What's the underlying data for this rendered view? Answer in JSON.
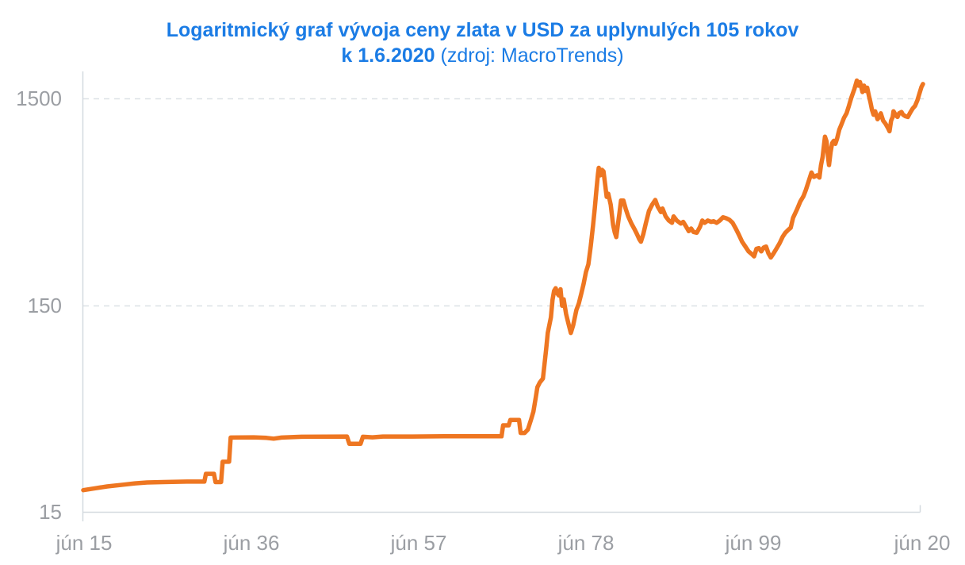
{
  "title": {
    "line1": "Logaritmický graf vývoja ceny zlata v USD za uplynulých 105 rokov",
    "line2_bold": "k 1.6.2020",
    "line2_normal": "(zdroj: MacroTrends)"
  },
  "colors": {
    "title_blue": "#1B7CE5",
    "line_orange": "#EE7621",
    "tick_gray": "#9B9EA3",
    "grid_dashed": "#DCE1E6",
    "axis_solid": "#D4DADF"
  },
  "chart_data": {
    "type": "line",
    "title": "Logaritmický graf vývoja ceny zlata v USD za uplynulých 105 rokov k 1.6.2020 (zdroj: MacroTrends)",
    "scale_y": "log",
    "grid": "horizontal-dashed",
    "legend": "none",
    "x_axis": {
      "tick_labels": [
        "jún 15",
        "jún 36",
        "jún 57",
        "jún 78",
        "jún 99",
        "jún 20"
      ],
      "tick_years": [
        1915,
        1936,
        1957,
        1978,
        1999,
        2020
      ],
      "range_years": [
        1915,
        2020.5
      ]
    },
    "y_axis": {
      "tick_labels": [
        "1500",
        "150",
        "15"
      ],
      "tick_values": [
        1500,
        150,
        15
      ],
      "range": [
        15,
        2400
      ],
      "dashed_gridlines_at": [
        150,
        1500
      ]
    },
    "series": [
      {
        "name": "gold-price-usd",
        "points_format": [
          "year",
          "price_usd"
        ],
        "points": [
          [
            1915.0,
            19.1
          ],
          [
            1916.5,
            19.5
          ],
          [
            1918.0,
            19.9
          ],
          [
            1920.0,
            20.3
          ],
          [
            1921.5,
            20.6
          ],
          [
            1923.0,
            20.8
          ],
          [
            1925.0,
            20.9
          ],
          [
            1928.0,
            21.0
          ],
          [
            1930.2,
            21.0
          ],
          [
            1930.4,
            22.9
          ],
          [
            1931.4,
            22.9
          ],
          [
            1931.6,
            20.9
          ],
          [
            1932.3,
            20.9
          ],
          [
            1932.5,
            26.2
          ],
          [
            1933.3,
            26.2
          ],
          [
            1933.5,
            34.3
          ],
          [
            1936.4,
            34.4
          ],
          [
            1938.0,
            34.2
          ],
          [
            1938.9,
            33.9
          ],
          [
            1939.9,
            34.3
          ],
          [
            1942.4,
            34.6
          ],
          [
            1948.1,
            34.7
          ],
          [
            1948.4,
            32.0
          ],
          [
            1949.8,
            32.0
          ],
          [
            1950.1,
            34.6
          ],
          [
            1951.3,
            34.4
          ],
          [
            1952.6,
            34.7
          ],
          [
            1956.3,
            34.7
          ],
          [
            1960.3,
            34.8
          ],
          [
            1964.3,
            34.8
          ],
          [
            1967.5,
            34.8
          ],
          [
            1967.7,
            39.3
          ],
          [
            1968.4,
            39.3
          ],
          [
            1968.6,
            41.7
          ],
          [
            1969.7,
            41.7
          ],
          [
            1969.9,
            36.1
          ],
          [
            1970.4,
            36.1
          ],
          [
            1970.8,
            37.5
          ],
          [
            1971.2,
            41.9
          ],
          [
            1971.5,
            45.8
          ],
          [
            1971.8,
            53.7
          ],
          [
            1972.0,
            60.1
          ],
          [
            1972.3,
            63.3
          ],
          [
            1972.7,
            66.2
          ],
          [
            1972.9,
            78.3
          ],
          [
            1973.1,
            92
          ],
          [
            1973.3,
            110
          ],
          [
            1973.5,
            120
          ],
          [
            1973.7,
            131
          ],
          [
            1973.9,
            159
          ],
          [
            1974.1,
            176
          ],
          [
            1974.3,
            181
          ],
          [
            1974.5,
            171
          ],
          [
            1974.7,
            167
          ],
          [
            1974.9,
            179
          ],
          [
            1975.1,
            149
          ],
          [
            1975.3,
            160
          ],
          [
            1975.6,
            136
          ],
          [
            1975.9,
            122
          ],
          [
            1976.2,
            110
          ],
          [
            1976.5,
            120
          ],
          [
            1976.9,
            142
          ],
          [
            1977.2,
            153
          ],
          [
            1977.5,
            170
          ],
          [
            1977.8,
            190
          ],
          [
            1978.1,
            217
          ],
          [
            1978.4,
            236
          ],
          [
            1978.7,
            289
          ],
          [
            1979.0,
            367
          ],
          [
            1979.2,
            441
          ],
          [
            1979.4,
            537
          ],
          [
            1979.6,
            645
          ],
          [
            1979.7,
            692
          ],
          [
            1979.9,
            637
          ],
          [
            1980.1,
            677
          ],
          [
            1980.3,
            665
          ],
          [
            1980.5,
            578
          ],
          [
            1980.7,
            501
          ],
          [
            1980.9,
            519
          ],
          [
            1981.2,
            459
          ],
          [
            1981.5,
            367
          ],
          [
            1981.7,
            338
          ],
          [
            1981.9,
            320
          ],
          [
            1982.1,
            367
          ],
          [
            1982.3,
            418
          ],
          [
            1982.5,
            481
          ],
          [
            1982.8,
            481
          ],
          [
            1983.1,
            437
          ],
          [
            1983.4,
            403
          ],
          [
            1983.8,
            372
          ],
          [
            1984.2,
            349
          ],
          [
            1984.5,
            331
          ],
          [
            1984.8,
            312
          ],
          [
            1985.0,
            304
          ],
          [
            1985.3,
            331
          ],
          [
            1985.6,
            372
          ],
          [
            1986.0,
            428
          ],
          [
            1986.4,
            459
          ],
          [
            1986.8,
            484
          ],
          [
            1987.1,
            450
          ],
          [
            1987.5,
            423
          ],
          [
            1987.7,
            440
          ],
          [
            1988.1,
            403
          ],
          [
            1988.5,
            385
          ],
          [
            1988.9,
            375
          ],
          [
            1989.1,
            403
          ],
          [
            1989.5,
            385
          ],
          [
            1990.0,
            372
          ],
          [
            1990.3,
            379
          ],
          [
            1990.7,
            358
          ],
          [
            1991.0,
            342
          ],
          [
            1991.3,
            352
          ],
          [
            1991.6,
            339
          ],
          [
            1992.0,
            336
          ],
          [
            1992.4,
            358
          ],
          [
            1992.7,
            385
          ],
          [
            1993.0,
            375
          ],
          [
            1993.4,
            385
          ],
          [
            1993.8,
            379
          ],
          [
            1994.1,
            382
          ],
          [
            1994.5,
            375
          ],
          [
            1994.9,
            385
          ],
          [
            1995.3,
            399
          ],
          [
            1995.7,
            395
          ],
          [
            1996.1,
            388
          ],
          [
            1996.5,
            375
          ],
          [
            1996.9,
            352
          ],
          [
            1997.3,
            328
          ],
          [
            1997.7,
            304
          ],
          [
            1998.1,
            288
          ],
          [
            1998.5,
            273
          ],
          [
            1998.9,
            265
          ],
          [
            1999.2,
            258
          ],
          [
            1999.5,
            281
          ],
          [
            1999.8,
            283
          ],
          [
            2000.1,
            273
          ],
          [
            2000.4,
            285
          ],
          [
            2000.7,
            288
          ],
          [
            2001.0,
            267
          ],
          [
            2001.3,
            255
          ],
          [
            2001.6,
            265
          ],
          [
            2002.0,
            281
          ],
          [
            2002.4,
            299
          ],
          [
            2002.8,
            322
          ],
          [
            2003.1,
            335
          ],
          [
            2003.5,
            347
          ],
          [
            2003.8,
            355
          ],
          [
            2004.1,
            397
          ],
          [
            2004.6,
            437
          ],
          [
            2005.0,
            476
          ],
          [
            2005.4,
            505
          ],
          [
            2005.7,
            541
          ],
          [
            2006.0,
            587
          ],
          [
            2006.4,
            657
          ],
          [
            2006.7,
            626
          ],
          [
            2007.1,
            637
          ],
          [
            2007.4,
            621
          ],
          [
            2007.6,
            714
          ],
          [
            2007.8,
            779
          ],
          [
            2008.1,
            980
          ],
          [
            2008.3,
            929
          ],
          [
            2008.5,
            765
          ],
          [
            2008.6,
            714
          ],
          [
            2008.8,
            825
          ],
          [
            2009.0,
            912
          ],
          [
            2009.2,
            936
          ],
          [
            2009.4,
            904
          ],
          [
            2009.6,
            953
          ],
          [
            2009.9,
            1060
          ],
          [
            2010.2,
            1130
          ],
          [
            2010.5,
            1210
          ],
          [
            2010.8,
            1270
          ],
          [
            2011.1,
            1380
          ],
          [
            2011.4,
            1510
          ],
          [
            2011.8,
            1670
          ],
          [
            2012.1,
            1830
          ],
          [
            2012.3,
            1730
          ],
          [
            2012.5,
            1800
          ],
          [
            2012.8,
            1610
          ],
          [
            2013.0,
            1730
          ],
          [
            2013.2,
            1630
          ],
          [
            2013.4,
            1690
          ],
          [
            2013.6,
            1550
          ],
          [
            2013.8,
            1440
          ],
          [
            2014.0,
            1320
          ],
          [
            2014.2,
            1250
          ],
          [
            2014.4,
            1300
          ],
          [
            2014.7,
            1190
          ],
          [
            2014.9,
            1220
          ],
          [
            2015.1,
            1270
          ],
          [
            2015.4,
            1170
          ],
          [
            2015.7,
            1130
          ],
          [
            2016.0,
            1080
          ],
          [
            2016.2,
            1040
          ],
          [
            2016.4,
            1170
          ],
          [
            2016.6,
            1220
          ],
          [
            2016.7,
            1300
          ],
          [
            2017.0,
            1240
          ],
          [
            2017.2,
            1220
          ],
          [
            2017.4,
            1270
          ],
          [
            2017.7,
            1290
          ],
          [
            2017.9,
            1250
          ],
          [
            2018.2,
            1230
          ],
          [
            2018.5,
            1220
          ],
          [
            2018.8,
            1280
          ],
          [
            2019.1,
            1340
          ],
          [
            2019.4,
            1380
          ],
          [
            2019.7,
            1470
          ],
          [
            2019.9,
            1560
          ],
          [
            2020.2,
            1700
          ],
          [
            2020.4,
            1760
          ]
        ]
      }
    ]
  }
}
